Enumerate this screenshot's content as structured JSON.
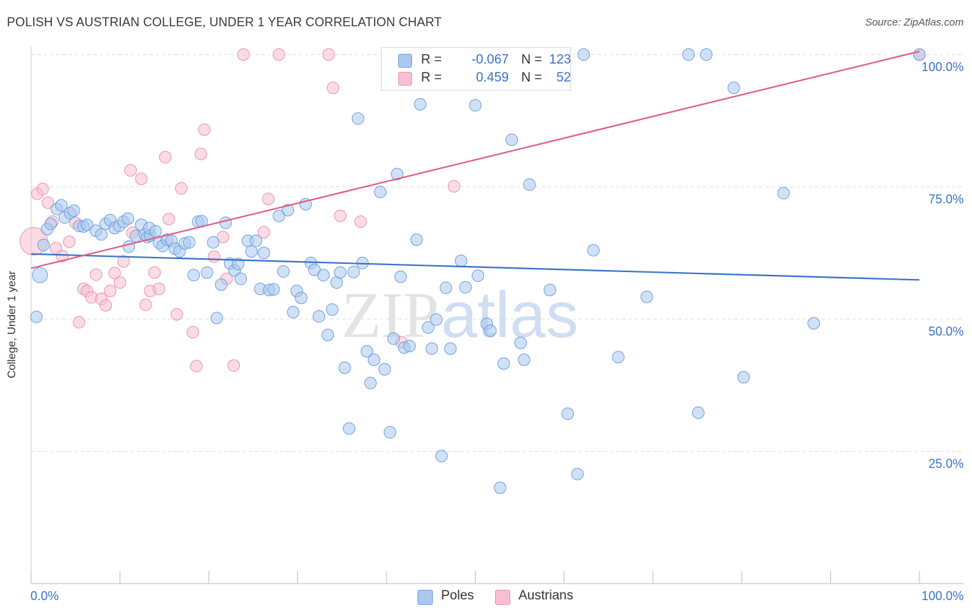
{
  "title": "POLISH VS AUSTRIAN COLLEGE, UNDER 1 YEAR CORRELATION CHART",
  "source": "Source: ZipAtlas.com",
  "watermark": {
    "part1": "ZIP",
    "part2": "atlas"
  },
  "legend": {
    "poles": {
      "r_label": "R =",
      "r_value": "-0.067",
      "n_label": "N =",
      "n_value": "123"
    },
    "austrians": {
      "r_label": "R =",
      "r_value": "0.459",
      "n_label": "N =",
      "n_value": "52"
    }
  },
  "bottom_legend": {
    "poles": "Poles",
    "austrians": "Austrians"
  },
  "colors": {
    "poles_fill": "#aac8f0",
    "poles_stroke": "#6f9fdc",
    "poles_line": "#3a73c8",
    "austrians_fill": "#f8bfd0",
    "austrians_stroke": "#ec93af",
    "austrians_line": "#e0608a",
    "tick_text": "#3a73c8",
    "grid": "#dddddd"
  },
  "chart_data": {
    "type": "scatter",
    "title": "POLISH VS AUSTRIAN COLLEGE, UNDER 1 YEAR CORRELATION CHART",
    "xlabel": "",
    "ylabel": "College, Under 1 year",
    "xlim": [
      0,
      100
    ],
    "ylim": [
      0,
      100
    ],
    "x_tick_labels": [
      "0.0%",
      "100.0%"
    ],
    "y_ticks": [
      25,
      50,
      75,
      100
    ],
    "y_tick_labels": [
      "25.0%",
      "50.0%",
      "75.0%",
      "100.0%"
    ],
    "grid": true,
    "legend_position": "top-center",
    "series": [
      {
        "name": "Poles",
        "r": -0.067,
        "n": 123,
        "trend": {
          "x": [
            0,
            100
          ],
          "y": [
            62.3,
            57.4
          ]
        },
        "points": [
          [
            1.0,
            58.3
          ],
          [
            0.6,
            50.4
          ],
          [
            1.4,
            64.0
          ],
          [
            1.8,
            67.0
          ],
          [
            2.2,
            68.0
          ],
          [
            2.9,
            70.8
          ],
          [
            3.4,
            71.5
          ],
          [
            3.8,
            69.2
          ],
          [
            4.4,
            70.0
          ],
          [
            4.8,
            70.5
          ],
          [
            5.4,
            67.6
          ],
          [
            5.9,
            67.5
          ],
          [
            6.3,
            67.8
          ],
          [
            7.3,
            66.7
          ],
          [
            7.9,
            66.0
          ],
          [
            8.4,
            68.0
          ],
          [
            8.9,
            68.7
          ],
          [
            9.4,
            67.2
          ],
          [
            9.9,
            67.6
          ],
          [
            10.4,
            68.4
          ],
          [
            10.9,
            69.0
          ],
          [
            11.0,
            63.7
          ],
          [
            11.8,
            65.7
          ],
          [
            12.4,
            67.8
          ],
          [
            12.8,
            66.0
          ],
          [
            13.1,
            65.5
          ],
          [
            13.4,
            65.8
          ],
          [
            13.3,
            67.2
          ],
          [
            14.0,
            66.6
          ],
          [
            14.4,
            64.4
          ],
          [
            14.8,
            63.8
          ],
          [
            15.3,
            65.0
          ],
          [
            15.8,
            64.8
          ],
          [
            16.2,
            63.3
          ],
          [
            16.7,
            62.8
          ],
          [
            17.3,
            64.3
          ],
          [
            17.8,
            64.5
          ],
          [
            18.3,
            58.3
          ],
          [
            18.8,
            68.4
          ],
          [
            19.2,
            68.5
          ],
          [
            19.8,
            58.8
          ],
          [
            20.5,
            64.5
          ],
          [
            20.9,
            50.2
          ],
          [
            21.4,
            56.5
          ],
          [
            21.9,
            68.2
          ],
          [
            22.4,
            60.5
          ],
          [
            22.9,
            59.2
          ],
          [
            23.3,
            60.4
          ],
          [
            23.6,
            57.6
          ],
          [
            24.4,
            64.8
          ],
          [
            24.8,
            62.8
          ],
          [
            25.3,
            64.8
          ],
          [
            25.8,
            55.7
          ],
          [
            26.2,
            62.5
          ],
          [
            26.8,
            55.5
          ],
          [
            27.3,
            55.6
          ],
          [
            27.9,
            69.5
          ],
          [
            28.4,
            59.0
          ],
          [
            28.9,
            70.6
          ],
          [
            29.5,
            51.3
          ],
          [
            29.9,
            55.3
          ],
          [
            30.4,
            54.0
          ],
          [
            30.9,
            71.7
          ],
          [
            31.5,
            60.6
          ],
          [
            31.9,
            59.3
          ],
          [
            32.4,
            50.5
          ],
          [
            32.9,
            58.3
          ],
          [
            33.4,
            47.0
          ],
          [
            33.9,
            51.8
          ],
          [
            34.4,
            56.9
          ],
          [
            34.8,
            58.8
          ],
          [
            35.3,
            40.8
          ],
          [
            35.8,
            29.3
          ],
          [
            36.3,
            58.9
          ],
          [
            36.8,
            87.9
          ],
          [
            37.3,
            60.6
          ],
          [
            37.8,
            43.9
          ],
          [
            38.2,
            37.9
          ],
          [
            38.6,
            42.3
          ],
          [
            39.3,
            74.0
          ],
          [
            39.8,
            40.5
          ],
          [
            40.4,
            28.6
          ],
          [
            40.8,
            46.3
          ],
          [
            41.2,
            77.4
          ],
          [
            41.6,
            58.0
          ],
          [
            42.0,
            44.6
          ],
          [
            42.6,
            44.9
          ],
          [
            43.4,
            65.0
          ],
          [
            43.8,
            90.6
          ],
          [
            44.7,
            48.4
          ],
          [
            45.1,
            44.4
          ],
          [
            45.6,
            49.9
          ],
          [
            46.2,
            24.1
          ],
          [
            46.7,
            55.9
          ],
          [
            47.2,
            44.4
          ],
          [
            48.4,
            61.0
          ],
          [
            48.9,
            56.0
          ],
          [
            50.0,
            90.4
          ],
          [
            50.3,
            58.2
          ],
          [
            51.3,
            49.1
          ],
          [
            51.7,
            47.8
          ],
          [
            52.3,
            100.0
          ],
          [
            52.8,
            18.1
          ],
          [
            53.2,
            41.6
          ],
          [
            53.7,
            96.4
          ],
          [
            54.1,
            83.9
          ],
          [
            54.7,
            100.0
          ],
          [
            55.1,
            45.5
          ],
          [
            55.5,
            42.3
          ],
          [
            56.1,
            75.4
          ],
          [
            58.4,
            55.5
          ],
          [
            60.4,
            32.1
          ],
          [
            61.5,
            20.7
          ],
          [
            62.2,
            100.0
          ],
          [
            63.3,
            63.0
          ],
          [
            66.1,
            42.8
          ],
          [
            69.3,
            54.2
          ],
          [
            74.0,
            100.0
          ],
          [
            75.1,
            32.3
          ],
          [
            76.0,
            100.0
          ],
          [
            79.1,
            93.7
          ],
          [
            80.2,
            39.0
          ],
          [
            84.7,
            73.8
          ],
          [
            88.1,
            49.2
          ],
          [
            100.0,
            100.0
          ]
        ]
      },
      {
        "name": "Austrians",
        "r": 0.459,
        "n": 52,
        "trend": {
          "x": [
            0,
            100
          ],
          "y": [
            59.6,
            100.6
          ]
        },
        "points": [
          [
            0.3,
            64.7
          ],
          [
            0.7,
            73.7
          ],
          [
            1.3,
            74.6
          ],
          [
            1.9,
            72.0
          ],
          [
            2.4,
            68.4
          ],
          [
            2.8,
            63.4
          ],
          [
            3.5,
            61.9
          ],
          [
            4.3,
            64.6
          ],
          [
            5.0,
            68.2
          ],
          [
            5.4,
            49.4
          ],
          [
            5.9,
            55.7
          ],
          [
            6.3,
            55.3
          ],
          [
            6.8,
            54.1
          ],
          [
            7.3,
            58.4
          ],
          [
            7.9,
            53.8
          ],
          [
            8.4,
            52.6
          ],
          [
            8.9,
            55.3
          ],
          [
            9.4,
            58.7
          ],
          [
            10.0,
            56.9
          ],
          [
            10.4,
            60.9
          ],
          [
            11.4,
            66.3
          ],
          [
            11.2,
            78.1
          ],
          [
            12.4,
            76.5
          ],
          [
            12.9,
            52.7
          ],
          [
            13.4,
            55.3
          ],
          [
            13.9,
            58.8
          ],
          [
            14.4,
            55.7
          ],
          [
            15.1,
            80.6
          ],
          [
            15.5,
            68.9
          ],
          [
            16.4,
            50.9
          ],
          [
            16.9,
            74.7
          ],
          [
            18.2,
            47.5
          ],
          [
            18.6,
            41.1
          ],
          [
            19.1,
            81.2
          ],
          [
            19.5,
            85.8
          ],
          [
            20.6,
            61.8
          ],
          [
            21.6,
            65.5
          ],
          [
            22.0,
            57.6
          ],
          [
            22.8,
            41.2
          ],
          [
            23.9,
            100.0
          ],
          [
            26.2,
            66.4
          ],
          [
            26.7,
            72.7
          ],
          [
            27.9,
            100.0
          ],
          [
            33.5,
            100.0
          ],
          [
            34.0,
            93.7
          ],
          [
            34.8,
            69.5
          ],
          [
            37.1,
            68.4
          ],
          [
            41.7,
            45.6
          ],
          [
            47.1,
            96.4
          ],
          [
            47.6,
            75.1
          ],
          [
            52.2,
            97.0
          ],
          [
            100.0,
            100.0
          ]
        ]
      }
    ]
  }
}
